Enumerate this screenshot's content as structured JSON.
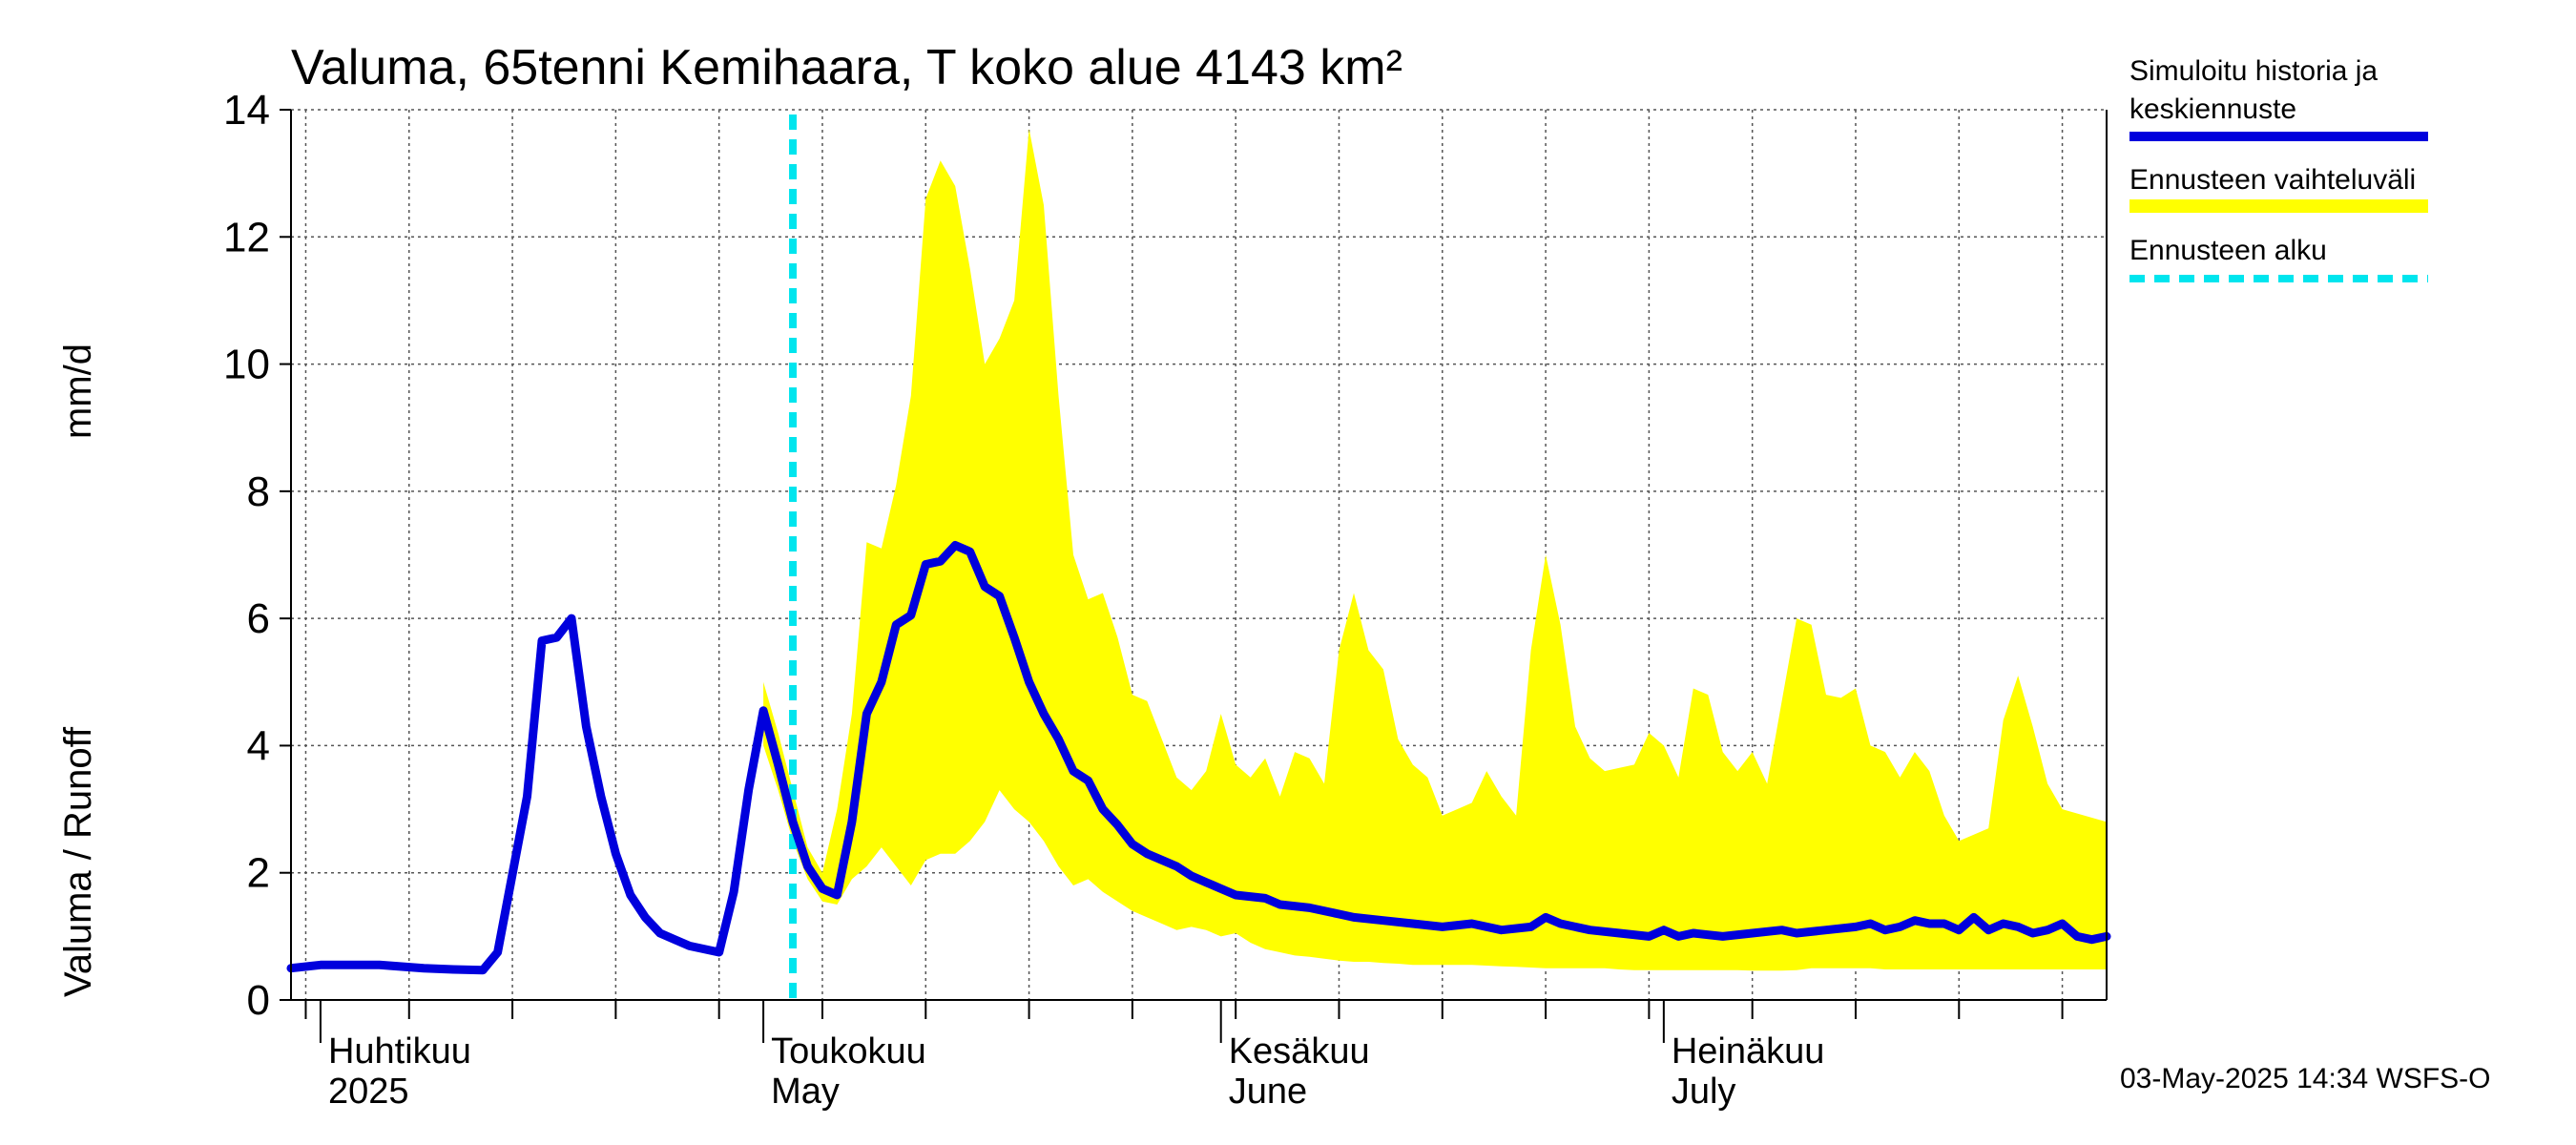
{
  "chart_data": {
    "type": "area",
    "title": "Valuma, 65tenni Kemihaara, T koko alue 4143 km²",
    "ylabel_left": "Valuma / Runoff",
    "ylabel_right": "mm/d",
    "ylim": [
      0,
      14
    ],
    "y_ticks": [
      "0",
      "2",
      "4",
      "6",
      "8",
      "10",
      "12",
      "14"
    ],
    "x_range": [
      "2025-03-30",
      "2025-07-31"
    ],
    "month_labels": [
      {
        "fi": "Huhtikuu",
        "en": "2025",
        "date": "2025-04-01"
      },
      {
        "fi": "Toukokuu",
        "en": "May",
        "date": "2025-05-01"
      },
      {
        "fi": "Kesäkuu",
        "en": "June",
        "date": "2025-06-01"
      },
      {
        "fi": "Heinäkuu",
        "en": "July",
        "date": "2025-07-01"
      }
    ],
    "forecast_start": "2025-05-03",
    "grid": true,
    "legend_position": "right",
    "footer": "03-May-2025 14:34 WSFS-O",
    "series": [
      {
        "name": "Simuloitu historia ja\nkeskiennuste",
        "legend_lines": [
          "Simuloitu historia ja",
          "keskiennuste"
        ],
        "color": "#0000dd",
        "points": [
          [
            "2025-03-30",
            0.5
          ],
          [
            "2025-04-01",
            0.55
          ],
          [
            "2025-04-05",
            0.55
          ],
          [
            "2025-04-08",
            0.5
          ],
          [
            "2025-04-10",
            0.48
          ],
          [
            "2025-04-12",
            0.47
          ],
          [
            "2025-04-13",
            0.75
          ],
          [
            "2025-04-15",
            3.2
          ],
          [
            "2025-04-16",
            5.65
          ],
          [
            "2025-04-17",
            5.7
          ],
          [
            "2025-04-18",
            6.0
          ],
          [
            "2025-04-19",
            4.3
          ],
          [
            "2025-04-20",
            3.2
          ],
          [
            "2025-04-21",
            2.3
          ],
          [
            "2025-04-22",
            1.65
          ],
          [
            "2025-04-23",
            1.3
          ],
          [
            "2025-04-24",
            1.05
          ],
          [
            "2025-04-25",
            0.95
          ],
          [
            "2025-04-26",
            0.85
          ],
          [
            "2025-04-28",
            0.75
          ],
          [
            "2025-04-29",
            1.7
          ],
          [
            "2025-04-30",
            3.3
          ],
          [
            "2025-05-01",
            4.55
          ],
          [
            "2025-05-02",
            3.7
          ],
          [
            "2025-05-03",
            2.8
          ],
          [
            "2025-05-04",
            2.1
          ],
          [
            "2025-05-05",
            1.75
          ],
          [
            "2025-05-06",
            1.65
          ],
          [
            "2025-05-07",
            2.8
          ],
          [
            "2025-05-08",
            4.5
          ],
          [
            "2025-05-09",
            5.0
          ],
          [
            "2025-05-10",
            5.9
          ],
          [
            "2025-05-11",
            6.05
          ],
          [
            "2025-05-12",
            6.85
          ],
          [
            "2025-05-13",
            6.9
          ],
          [
            "2025-05-14",
            7.15
          ],
          [
            "2025-05-15",
            7.05
          ],
          [
            "2025-05-16",
            6.5
          ],
          [
            "2025-05-17",
            6.35
          ],
          [
            "2025-05-18",
            5.7
          ],
          [
            "2025-05-19",
            5.0
          ],
          [
            "2025-05-20",
            4.5
          ],
          [
            "2025-05-21",
            4.1
          ],
          [
            "2025-05-22",
            3.6
          ],
          [
            "2025-05-23",
            3.45
          ],
          [
            "2025-05-24",
            3.0
          ],
          [
            "2025-05-25",
            2.75
          ],
          [
            "2025-05-26",
            2.45
          ],
          [
            "2025-05-27",
            2.3
          ],
          [
            "2025-05-28",
            2.2
          ],
          [
            "2025-05-29",
            2.1
          ],
          [
            "2025-05-30",
            1.95
          ],
          [
            "2025-05-31",
            1.85
          ],
          [
            "2025-06-01",
            1.75
          ],
          [
            "2025-06-02",
            1.65
          ],
          [
            "2025-06-04",
            1.6
          ],
          [
            "2025-06-05",
            1.5
          ],
          [
            "2025-06-07",
            1.45
          ],
          [
            "2025-06-09",
            1.35
          ],
          [
            "2025-06-10",
            1.3
          ],
          [
            "2025-06-12",
            1.25
          ],
          [
            "2025-06-14",
            1.2
          ],
          [
            "2025-06-16",
            1.15
          ],
          [
            "2025-06-18",
            1.2
          ],
          [
            "2025-06-20",
            1.1
          ],
          [
            "2025-06-22",
            1.15
          ],
          [
            "2025-06-23",
            1.3
          ],
          [
            "2025-06-24",
            1.2
          ],
          [
            "2025-06-26",
            1.1
          ],
          [
            "2025-06-28",
            1.05
          ],
          [
            "2025-06-30",
            1.0
          ],
          [
            "2025-07-01",
            1.1
          ],
          [
            "2025-07-02",
            1.0
          ],
          [
            "2025-07-03",
            1.05
          ],
          [
            "2025-07-05",
            1.0
          ],
          [
            "2025-07-07",
            1.05
          ],
          [
            "2025-07-09",
            1.1
          ],
          [
            "2025-07-10",
            1.05
          ],
          [
            "2025-07-12",
            1.1
          ],
          [
            "2025-07-14",
            1.15
          ],
          [
            "2025-07-15",
            1.2
          ],
          [
            "2025-07-16",
            1.1
          ],
          [
            "2025-07-17",
            1.15
          ],
          [
            "2025-07-18",
            1.25
          ],
          [
            "2025-07-19",
            1.2
          ],
          [
            "2025-07-20",
            1.2
          ],
          [
            "2025-07-21",
            1.1
          ],
          [
            "2025-07-22",
            1.3
          ],
          [
            "2025-07-23",
            1.1
          ],
          [
            "2025-07-24",
            1.2
          ],
          [
            "2025-07-25",
            1.15
          ],
          [
            "2025-07-26",
            1.05
          ],
          [
            "2025-07-27",
            1.1
          ],
          [
            "2025-07-28",
            1.2
          ],
          [
            "2025-07-29",
            1.0
          ],
          [
            "2025-07-30",
            0.95
          ],
          [
            "2025-07-31",
            1.0
          ]
        ]
      },
      {
        "name": "Ennusteen vaihteluväli",
        "color": "#ffff00",
        "band": [
          [
            "2025-05-01",
            4.0,
            5.0
          ],
          [
            "2025-05-02",
            3.3,
            4.2
          ],
          [
            "2025-05-03",
            2.5,
            3.3
          ],
          [
            "2025-05-04",
            1.9,
            2.4
          ],
          [
            "2025-05-05",
            1.55,
            2.0
          ],
          [
            "2025-05-06",
            1.5,
            3.0
          ],
          [
            "2025-05-07",
            1.9,
            4.5
          ],
          [
            "2025-05-08",
            2.1,
            7.2
          ],
          [
            "2025-05-09",
            2.4,
            7.1
          ],
          [
            "2025-05-10",
            2.1,
            8.1
          ],
          [
            "2025-05-11",
            1.8,
            9.5
          ],
          [
            "2025-05-12",
            2.2,
            12.6
          ],
          [
            "2025-05-13",
            2.3,
            13.2
          ],
          [
            "2025-05-14",
            2.3,
            12.8
          ],
          [
            "2025-05-15",
            2.5,
            11.5
          ],
          [
            "2025-05-16",
            2.8,
            10.0
          ],
          [
            "2025-05-17",
            3.3,
            10.4
          ],
          [
            "2025-05-18",
            3.0,
            11.0
          ],
          [
            "2025-05-19",
            2.8,
            13.7
          ],
          [
            "2025-05-20",
            2.5,
            12.5
          ],
          [
            "2025-05-21",
            2.1,
            9.5
          ],
          [
            "2025-05-22",
            1.8,
            7.0
          ],
          [
            "2025-05-23",
            1.9,
            6.3
          ],
          [
            "2025-05-24",
            1.7,
            6.4
          ],
          [
            "2025-05-25",
            1.55,
            5.7
          ],
          [
            "2025-05-26",
            1.4,
            4.8
          ],
          [
            "2025-05-27",
            1.3,
            4.7
          ],
          [
            "2025-05-28",
            1.2,
            4.1
          ],
          [
            "2025-05-29",
            1.1,
            3.5
          ],
          [
            "2025-05-30",
            1.15,
            3.3
          ],
          [
            "2025-05-31",
            1.1,
            3.6
          ],
          [
            "2025-06-01",
            1.0,
            4.5
          ],
          [
            "2025-06-02",
            1.05,
            3.7
          ],
          [
            "2025-06-03",
            0.9,
            3.5
          ],
          [
            "2025-06-04",
            0.8,
            3.8
          ],
          [
            "2025-06-05",
            0.75,
            3.2
          ],
          [
            "2025-06-06",
            0.7,
            3.9
          ],
          [
            "2025-06-07",
            0.68,
            3.8
          ],
          [
            "2025-06-08",
            0.65,
            3.4
          ],
          [
            "2025-06-09",
            0.62,
            5.5
          ],
          [
            "2025-06-10",
            0.6,
            6.4
          ],
          [
            "2025-06-11",
            0.6,
            5.5
          ],
          [
            "2025-06-12",
            0.58,
            5.2
          ],
          [
            "2025-06-13",
            0.57,
            4.1
          ],
          [
            "2025-06-14",
            0.55,
            3.7
          ],
          [
            "2025-06-15",
            0.55,
            3.5
          ],
          [
            "2025-06-16",
            0.55,
            2.9
          ],
          [
            "2025-06-17",
            0.55,
            3.0
          ],
          [
            "2025-06-18",
            0.55,
            3.1
          ],
          [
            "2025-06-19",
            0.54,
            3.6
          ],
          [
            "2025-06-20",
            0.53,
            3.2
          ],
          [
            "2025-06-21",
            0.52,
            2.9
          ],
          [
            "2025-06-22",
            0.51,
            5.5
          ],
          [
            "2025-06-23",
            0.5,
            7.0
          ],
          [
            "2025-06-24",
            0.5,
            5.9
          ],
          [
            "2025-06-25",
            0.5,
            4.3
          ],
          [
            "2025-06-26",
            0.5,
            3.8
          ],
          [
            "2025-06-27",
            0.5,
            3.6
          ],
          [
            "2025-06-28",
            0.48,
            3.65
          ],
          [
            "2025-06-29",
            0.47,
            3.7
          ],
          [
            "2025-06-30",
            0.47,
            4.2
          ],
          [
            "2025-07-01",
            0.47,
            4.0
          ],
          [
            "2025-07-02",
            0.47,
            3.5
          ],
          [
            "2025-07-03",
            0.47,
            4.9
          ],
          [
            "2025-07-04",
            0.47,
            4.8
          ],
          [
            "2025-07-05",
            0.47,
            3.9
          ],
          [
            "2025-07-06",
            0.47,
            3.6
          ],
          [
            "2025-07-07",
            0.46,
            3.9
          ],
          [
            "2025-07-08",
            0.46,
            3.4
          ],
          [
            "2025-07-09",
            0.46,
            4.7
          ],
          [
            "2025-07-10",
            0.47,
            6.0
          ],
          [
            "2025-07-11",
            0.5,
            5.9
          ],
          [
            "2025-07-12",
            0.5,
            4.8
          ],
          [
            "2025-07-13",
            0.5,
            4.75
          ],
          [
            "2025-07-14",
            0.5,
            4.9
          ],
          [
            "2025-07-15",
            0.5,
            4.0
          ],
          [
            "2025-07-16",
            0.48,
            3.9
          ],
          [
            "2025-07-17",
            0.48,
            3.5
          ],
          [
            "2025-07-18",
            0.48,
            3.9
          ],
          [
            "2025-07-19",
            0.48,
            3.6
          ],
          [
            "2025-07-20",
            0.48,
            2.9
          ],
          [
            "2025-07-21",
            0.48,
            2.5
          ],
          [
            "2025-07-22",
            0.48,
            2.6
          ],
          [
            "2025-07-23",
            0.48,
            2.7
          ],
          [
            "2025-07-24",
            0.48,
            4.4
          ],
          [
            "2025-07-25",
            0.48,
            5.1
          ],
          [
            "2025-07-26",
            0.48,
            4.3
          ],
          [
            "2025-07-27",
            0.48,
            3.4
          ],
          [
            "2025-07-28",
            0.48,
            3.0
          ],
          [
            "2025-07-31",
            0.48,
            2.8
          ]
        ]
      },
      {
        "name": "Ennusteen alku",
        "color": "#00e5ee",
        "date": "2025-05-03"
      }
    ]
  }
}
